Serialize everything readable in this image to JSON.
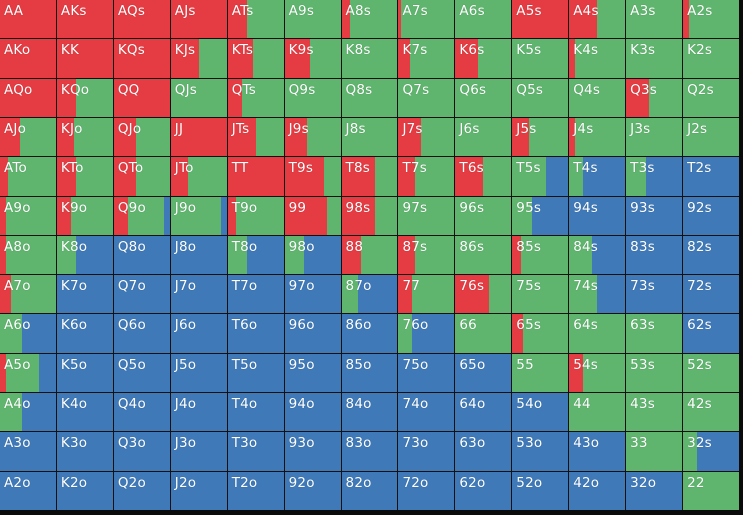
{
  "colors": {
    "raise": "#e53b42",
    "call": "#5fb56e",
    "fold": "#3f79b8"
  },
  "legend_actions": [
    "raise",
    "call",
    "fold"
  ],
  "hands": [
    [
      "AA",
      "AKs",
      "AQs",
      "AJs",
      "ATs",
      "A9s",
      "A8s",
      "A7s",
      "A6s",
      "A5s",
      "A4s",
      "A3s",
      "A2s"
    ],
    [
      "AKo",
      "KK",
      "KQs",
      "KJs",
      "KTs",
      "K9s",
      "K8s",
      "K7s",
      "K6s",
      "K5s",
      "K4s",
      "K3s",
      "K2s"
    ],
    [
      "AQo",
      "KQo",
      "QQ",
      "QJs",
      "QTs",
      "Q9s",
      "Q8s",
      "Q7s",
      "Q6s",
      "Q5s",
      "Q4s",
      "Q3s",
      "Q2s"
    ],
    [
      "AJo",
      "KJo",
      "QJo",
      "JJ",
      "JTs",
      "J9s",
      "J8s",
      "J7s",
      "J6s",
      "J5s",
      "J4s",
      "J3s",
      "J2s"
    ],
    [
      "ATo",
      "KTo",
      "QTo",
      "JTo",
      "TT",
      "T9s",
      "T8s",
      "T7s",
      "T6s",
      "T5s",
      "T4s",
      "T3s",
      "T2s"
    ],
    [
      "A9o",
      "K9o",
      "Q9o",
      "J9o",
      "T9o",
      "99",
      "98s",
      "97s",
      "96s",
      "95s",
      "94s",
      "93s",
      "92s"
    ],
    [
      "A8o",
      "K8o",
      "Q8o",
      "J8o",
      "T8o",
      "98o",
      "88",
      "87s",
      "86s",
      "85s",
      "84s",
      "83s",
      "82s"
    ],
    [
      "A7o",
      "K7o",
      "Q7o",
      "J7o",
      "T7o",
      "97o",
      "87o",
      "77",
      "76s",
      "75s",
      "74s",
      "73s",
      "72s"
    ],
    [
      "A6o",
      "K6o",
      "Q6o",
      "J6o",
      "T6o",
      "96o",
      "86o",
      "76o",
      "66",
      "65s",
      "64s",
      "63s",
      "62s"
    ],
    [
      "A5o",
      "K5o",
      "Q5o",
      "J5o",
      "T5o",
      "95o",
      "85o",
      "75o",
      "65o",
      "55",
      "54s",
      "53s",
      "52s"
    ],
    [
      "A4o",
      "K4o",
      "Q4o",
      "J4o",
      "T4o",
      "94o",
      "84o",
      "74o",
      "64o",
      "54o",
      "44",
      "43s",
      "42s"
    ],
    [
      "A3o",
      "K3o",
      "Q3o",
      "J3o",
      "T3o",
      "93o",
      "83o",
      "73o",
      "63o",
      "53o",
      "43o",
      "33",
      "32s"
    ],
    [
      "A2o",
      "K2o",
      "Q2o",
      "J2o",
      "T2o",
      "92o",
      "82o",
      "72o",
      "62o",
      "52o",
      "42o",
      "32o",
      "22"
    ]
  ],
  "frequencies": [
    [
      [
        1,
        0,
        0
      ],
      [
        1,
        0,
        0
      ],
      [
        1,
        0,
        0
      ],
      [
        1,
        0,
        0
      ],
      [
        0.35,
        0.65,
        0
      ],
      [
        0,
        1,
        0
      ],
      [
        0.15,
        0.85,
        0
      ],
      [
        0.05,
        0.95,
        0
      ],
      [
        0,
        1,
        0
      ],
      [
        1,
        0,
        0
      ],
      [
        0.5,
        0.5,
        0
      ],
      [
        0,
        1,
        0
      ],
      [
        0.1,
        0.9,
        0
      ]
    ],
    [
      [
        1,
        0,
        0
      ],
      [
        1,
        0,
        0
      ],
      [
        1,
        0,
        0
      ],
      [
        0.5,
        0.5,
        0
      ],
      [
        0.45,
        0.55,
        0
      ],
      [
        0.45,
        0.55,
        0
      ],
      [
        0,
        1,
        0
      ],
      [
        0.2,
        0.8,
        0
      ],
      [
        0.4,
        0.6,
        0
      ],
      [
        0,
        1,
        0
      ],
      [
        0.1,
        0.9,
        0
      ],
      [
        0,
        1,
        0
      ],
      [
        0,
        1,
        0
      ]
    ],
    [
      [
        1,
        0,
        0
      ],
      [
        0.35,
        0.65,
        0
      ],
      [
        1,
        0,
        0
      ],
      [
        0,
        1,
        0
      ],
      [
        0.25,
        0.75,
        0
      ],
      [
        0,
        1,
        0
      ],
      [
        0,
        1,
        0
      ],
      [
        0,
        1,
        0
      ],
      [
        0,
        1,
        0
      ],
      [
        0,
        1,
        0
      ],
      [
        0,
        1,
        0
      ],
      [
        0.4,
        0.6,
        0
      ],
      [
        0,
        1,
        0
      ]
    ],
    [
      [
        0.35,
        0.65,
        0
      ],
      [
        0.3,
        0.7,
        0
      ],
      [
        0.4,
        0.6,
        0
      ],
      [
        1,
        0,
        0
      ],
      [
        0.5,
        0.5,
        0
      ],
      [
        0.4,
        0.6,
        0
      ],
      [
        0,
        1,
        0
      ],
      [
        0.4,
        0.6,
        0
      ],
      [
        0,
        1,
        0
      ],
      [
        0.3,
        0.7,
        0
      ],
      [
        0.1,
        0.9,
        0
      ],
      [
        0,
        1,
        0
      ],
      [
        0,
        1,
        0
      ]
    ],
    [
      [
        0.15,
        0.85,
        0
      ],
      [
        0.35,
        0.65,
        0
      ],
      [
        0.4,
        0.6,
        0
      ],
      [
        0.3,
        0.7,
        0
      ],
      [
        1,
        0,
        0
      ],
      [
        0.7,
        0.3,
        0
      ],
      [
        0.6,
        0.4,
        0
      ],
      [
        0.3,
        0.7,
        0
      ],
      [
        0.5,
        0.5,
        0
      ],
      [
        0,
        0.6,
        0.4
      ],
      [
        0,
        0.25,
        0.75
      ],
      [
        0,
        0.35,
        0.65
      ],
      [
        0,
        0,
        1
      ]
    ],
    [
      [
        0.1,
        0.9,
        0
      ],
      [
        0.25,
        0.75,
        0
      ],
      [
        0.25,
        0.65,
        0.1
      ],
      [
        0,
        0.9,
        0.1
      ],
      [
        0.15,
        0.85,
        0
      ],
      [
        0.75,
        0.25,
        0
      ],
      [
        0.6,
        0.4,
        0
      ],
      [
        0,
        1,
        0
      ],
      [
        0,
        1,
        0
      ],
      [
        0,
        0.35,
        0.65
      ],
      [
        0,
        0,
        1
      ],
      [
        0,
        0,
        1
      ],
      [
        0,
        0,
        1
      ]
    ],
    [
      [
        0.1,
        0.9,
        0
      ],
      [
        0,
        0.35,
        0.65
      ],
      [
        0,
        0,
        1
      ],
      [
        0,
        0,
        1
      ],
      [
        0,
        0.35,
        0.65
      ],
      [
        0,
        0.35,
        0.65
      ],
      [
        0.35,
        0.65,
        0
      ],
      [
        0.3,
        0.7,
        0
      ],
      [
        0,
        1,
        0
      ],
      [
        0.15,
        0.85,
        0
      ],
      [
        0,
        0.4,
        0.6
      ],
      [
        0,
        0,
        1
      ],
      [
        0,
        0,
        1
      ]
    ],
    [
      [
        0.2,
        0.8,
        0
      ],
      [
        0,
        0,
        1
      ],
      [
        0,
        0,
        1
      ],
      [
        0,
        0,
        1
      ],
      [
        0,
        0,
        1
      ],
      [
        0,
        0,
        1
      ],
      [
        0,
        0.3,
        0.7
      ],
      [
        0.25,
        0.75,
        0
      ],
      [
        0.6,
        0.4,
        0
      ],
      [
        0,
        1,
        0
      ],
      [
        0,
        0.5,
        0.5
      ],
      [
        0,
        0,
        1
      ],
      [
        0,
        0,
        1
      ]
    ],
    [
      [
        0,
        0.4,
        0.6
      ],
      [
        0,
        0,
        1
      ],
      [
        0,
        0,
        1
      ],
      [
        0,
        0,
        1
      ],
      [
        0,
        0,
        1
      ],
      [
        0,
        0,
        1
      ],
      [
        0,
        0,
        1
      ],
      [
        0,
        0.25,
        0.75
      ],
      [
        0,
        1,
        0
      ],
      [
        0.2,
        0.8,
        0
      ],
      [
        0,
        1,
        0
      ],
      [
        0,
        1,
        0
      ],
      [
        0,
        0,
        1
      ]
    ],
    [
      [
        0.1,
        0.6,
        0.3
      ],
      [
        0,
        0,
        1
      ],
      [
        0,
        0,
        1
      ],
      [
        0,
        0,
        1
      ],
      [
        0,
        0,
        1
      ],
      [
        0,
        0,
        1
      ],
      [
        0,
        0,
        1
      ],
      [
        0,
        0,
        1
      ],
      [
        0,
        0,
        1
      ],
      [
        0,
        1,
        0
      ],
      [
        0.25,
        0.75,
        0
      ],
      [
        0,
        1,
        0
      ],
      [
        0,
        1,
        0
      ]
    ],
    [
      [
        0,
        0.4,
        0.6
      ],
      [
        0,
        0,
        1
      ],
      [
        0,
        0,
        1
      ],
      [
        0,
        0,
        1
      ],
      [
        0,
        0,
        1
      ],
      [
        0,
        0,
        1
      ],
      [
        0,
        0,
        1
      ],
      [
        0,
        0,
        1
      ],
      [
        0,
        0,
        1
      ],
      [
        0,
        0,
        1
      ],
      [
        0,
        1,
        0
      ],
      [
        0,
        1,
        0
      ],
      [
        0,
        1,
        0
      ]
    ],
    [
      [
        0,
        0,
        1
      ],
      [
        0,
        0,
        1
      ],
      [
        0,
        0,
        1
      ],
      [
        0,
        0,
        1
      ],
      [
        0,
        0,
        1
      ],
      [
        0,
        0,
        1
      ],
      [
        0,
        0,
        1
      ],
      [
        0,
        0,
        1
      ],
      [
        0,
        0,
        1
      ],
      [
        0,
        0,
        1
      ],
      [
        0,
        0,
        1
      ],
      [
        0,
        1,
        0
      ],
      [
        0,
        0.25,
        0.75
      ]
    ],
    [
      [
        0,
        0,
        1
      ],
      [
        0,
        0,
        1
      ],
      [
        0,
        0,
        1
      ],
      [
        0,
        0,
        1
      ],
      [
        0,
        0,
        1
      ],
      [
        0,
        0,
        1
      ],
      [
        0,
        0,
        1
      ],
      [
        0,
        0,
        1
      ],
      [
        0,
        0,
        1
      ],
      [
        0,
        0,
        1
      ],
      [
        0,
        0,
        1
      ],
      [
        0,
        0,
        1
      ],
      [
        0,
        1,
        0
      ]
    ]
  ]
}
